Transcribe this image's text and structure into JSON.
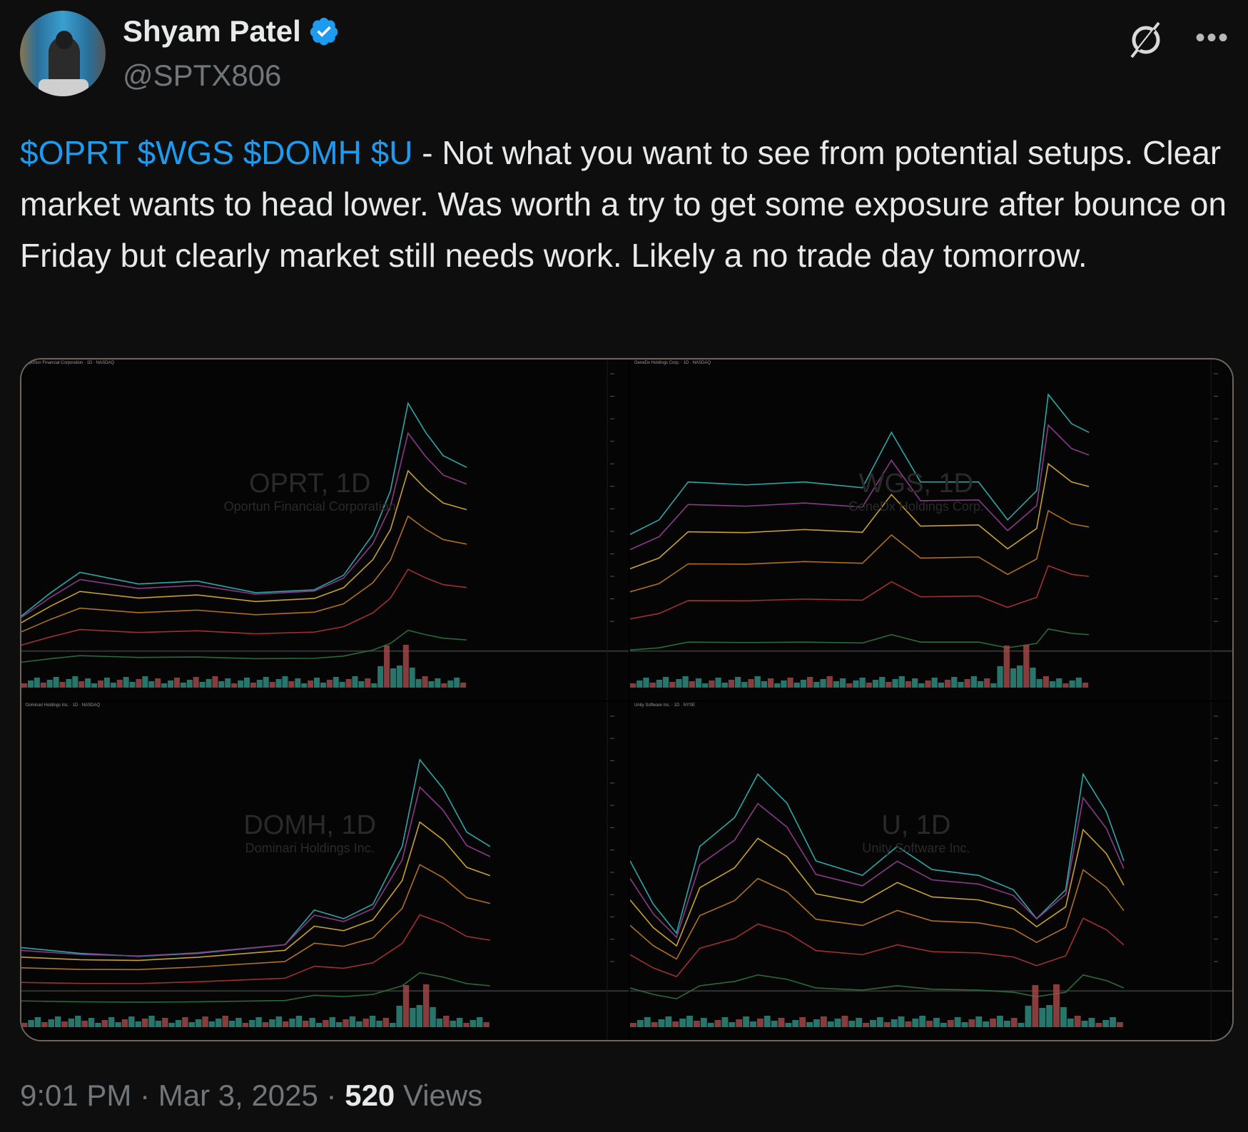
{
  "author": {
    "name": "Shyam Patel",
    "handle": "@SPTX806",
    "verified": true,
    "badge_color": "#1d9bf0"
  },
  "header_icons": [
    "grok-icon",
    "more-options-icon"
  ],
  "tweet": {
    "cashtags": "$OPRT $WGS $DOMH $U",
    "body": " - Not what you want to see from potential setups. Clear market wants to head lower. Was worth a try to get some exposure after bounce on Friday but clearly market still needs work. Likely a no trade day tomorrow.",
    "cashtag_color": "#1d9bf0"
  },
  "media": {
    "charts": [
      {
        "header": "Oportun Financial Corporation · 1D · NASDAQ",
        "watermark": "OPRT, 1D",
        "company": "Oportun Financial Corporation"
      },
      {
        "header": "GeneDx Holdings Corp. · 1D · NASDAQ",
        "watermark": "WGS, 1D",
        "company": "GeneDx Holdings Corp."
      },
      {
        "header": "Dominari Holdings Inc. · 1D · NASDAQ",
        "watermark": "DOMH, 1D",
        "company": "Dominari Holdings Inc."
      },
      {
        "header": "Unity Software Inc. · 1D · NYSE",
        "watermark": "U, 1D",
        "company": "Unity Software Inc."
      }
    ]
  },
  "footer": {
    "time": "9:01 PM",
    "sep": " · ",
    "date": "Mar 3, 2025",
    "views_count": "520",
    "views_label": "Views"
  }
}
